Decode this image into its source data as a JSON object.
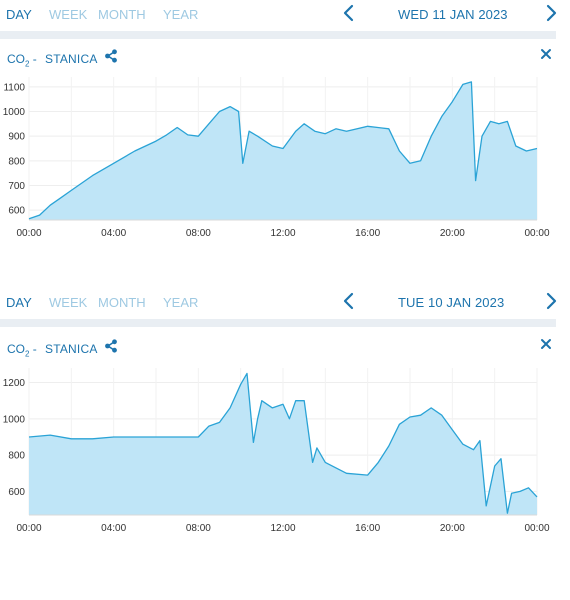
{
  "panels": [
    {
      "tabs": [
        "DAY",
        "WEEK",
        "MONTH",
        "YEAR"
      ],
      "active_tab": "DAY",
      "date": "WED 11 JAN 2023",
      "metric": {
        "prefix": "CO",
        "subscript": "2",
        "suffix": " -"
      },
      "station": "STANICA",
      "icons": {
        "prev": "chevron-left-icon",
        "next": "chevron-right-icon",
        "share": "share-icon",
        "close": "close-icon"
      }
    },
    {
      "tabs": [
        "DAY",
        "WEEK",
        "MONTH",
        "YEAR"
      ],
      "active_tab": "DAY",
      "date": "TUE 10 JAN 2023",
      "metric": {
        "prefix": "CO",
        "subscript": "2",
        "suffix": " -"
      },
      "station": "STANICA",
      "icons": {
        "prev": "chevron-left-icon",
        "next": "chevron-right-icon",
        "share": "share-icon",
        "close": "close-icon"
      }
    }
  ],
  "colors": {
    "accent": "#1d74ad",
    "line": "#2aa3d6",
    "fill": "#bfe5f7",
    "inactive_tab": "#9ec9e2",
    "divider": "#e9eef3"
  },
  "chart_data": [
    {
      "type": "area",
      "date": "WED 11 JAN 2023",
      "x_unit": "hours",
      "x_ticks": [
        "00:00",
        "04:00",
        "08:00",
        "12:00",
        "16:00",
        "20:00",
        "00:00"
      ],
      "y_ticks": [
        600,
        700,
        800,
        900,
        1000,
        1100
      ],
      "ylim": [
        560,
        1140
      ],
      "xlim": [
        0,
        24
      ],
      "grid": true,
      "series": [
        {
          "x": [
            0,
            0.5,
            1,
            1.5,
            2,
            3,
            4,
            5,
            6,
            6.5,
            7,
            7.5,
            8,
            8.5,
            9,
            9.5,
            9.9,
            10.1,
            10.4,
            10.8,
            11.5,
            12,
            12.6,
            13,
            13.5,
            14,
            14.5,
            15,
            16,
            17,
            17.5,
            18,
            18.5,
            19,
            19.5,
            20,
            20.5,
            20.9,
            21.1,
            21.4,
            21.8,
            22.2,
            22.6,
            23,
            23.5,
            24
          ],
          "y": [
            565,
            580,
            620,
            650,
            680,
            740,
            790,
            840,
            880,
            905,
            935,
            905,
            900,
            950,
            1000,
            1020,
            1000,
            790,
            920,
            900,
            860,
            850,
            920,
            950,
            920,
            910,
            930,
            920,
            940,
            930,
            840,
            790,
            800,
            900,
            980,
            1040,
            1110,
            1120,
            720,
            900,
            960,
            950,
            960,
            860,
            840,
            850
          ]
        }
      ]
    },
    {
      "type": "area",
      "date": "TUE 10 JAN 2023",
      "x_unit": "hours",
      "x_ticks": [
        "00:00",
        "04:00",
        "08:00",
        "12:00",
        "16:00",
        "20:00",
        "00:00"
      ],
      "y_ticks": [
        600,
        800,
        1000,
        1200
      ],
      "ylim": [
        470,
        1280
      ],
      "xlim": [
        0,
        24
      ],
      "grid": true,
      "series": [
        {
          "x": [
            0,
            1,
            2,
            3,
            4,
            5,
            6,
            7,
            8,
            8.5,
            9,
            9.5,
            10,
            10.3,
            10.6,
            10.8,
            11,
            11.5,
            12,
            12.3,
            12.6,
            13,
            13.4,
            13.6,
            14,
            15,
            16,
            16.5,
            17,
            17.5,
            18,
            18.5,
            19,
            19.5,
            20,
            20.5,
            21,
            21.3,
            21.6,
            22,
            22.3,
            22.6,
            22.8,
            23.2,
            23.6,
            24
          ],
          "y": [
            900,
            910,
            890,
            890,
            900,
            900,
            900,
            900,
            900,
            960,
            980,
            1060,
            1190,
            1250,
            870,
            1000,
            1100,
            1060,
            1080,
            1000,
            1100,
            1100,
            760,
            840,
            760,
            700,
            690,
            760,
            850,
            970,
            1010,
            1020,
            1060,
            1020,
            940,
            860,
            830,
            880,
            520,
            740,
            780,
            480,
            590,
            600,
            620,
            570
          ]
        }
      ]
    }
  ]
}
